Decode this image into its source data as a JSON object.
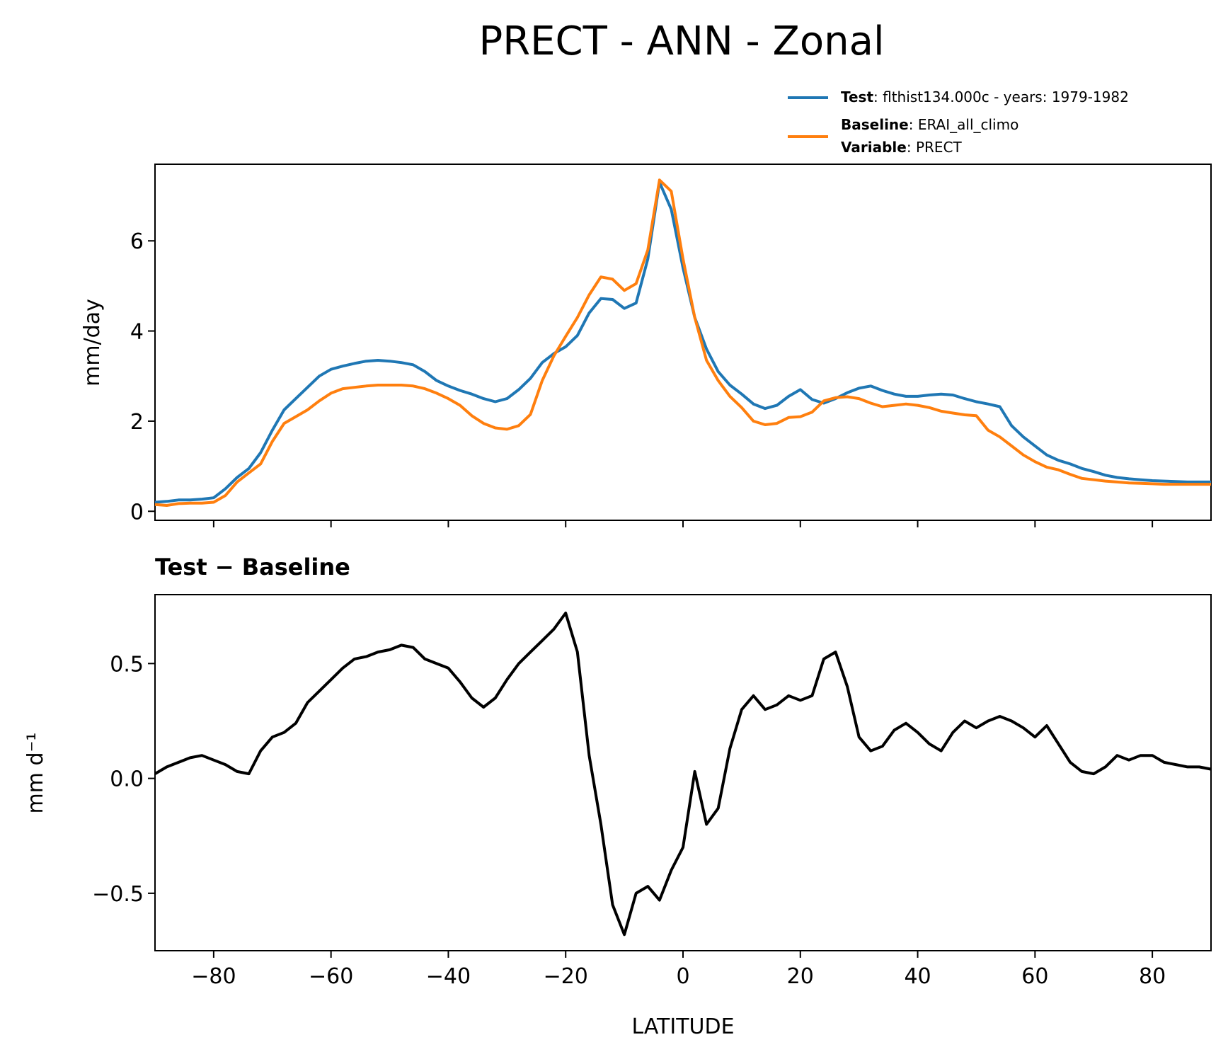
{
  "chart_data": [
    {
      "type": "line",
      "title": "PRECT - ANN - Zonal",
      "xlabel": "",
      "ylabel": "mm/day",
      "xlim": [
        -90,
        90
      ],
      "ylim": [
        -0.2,
        7.7
      ],
      "yticks": [
        0,
        2,
        4,
        6
      ],
      "ytick_labels": [
        "0",
        "2",
        "4",
        "6"
      ],
      "xticks": [
        -80,
        -60,
        -40,
        -20,
        0,
        20,
        40,
        60,
        80
      ],
      "legend": {
        "placement": "above-right",
        "test_key": "Test",
        "test_value": ": flthist134.000c - years: 1979-1982",
        "baseline_key": "Baseline",
        "baseline_value": ": ERAI_all_climo",
        "variable_key": "Variable",
        "variable_value": ": PRECT"
      },
      "series": [
        {
          "name": "Test",
          "color": "#1f77b4",
          "x": [
            -90,
            -88,
            -86,
            -84,
            -82,
            -80,
            -78,
            -76,
            -74,
            -72,
            -70,
            -68,
            -66,
            -64,
            -62,
            -60,
            -58,
            -56,
            -54,
            -52,
            -50,
            -48,
            -46,
            -44,
            -42,
            -40,
            -38,
            -36,
            -34,
            -32,
            -30,
            -28,
            -26,
            -24,
            -22,
            -20,
            -18,
            -16,
            -14,
            -12,
            -10,
            -8,
            -6,
            -4,
            -2,
            0,
            2,
            4,
            6,
            8,
            10,
            12,
            14,
            16,
            18,
            20,
            22,
            24,
            26,
            28,
            30,
            32,
            34,
            36,
            38,
            40,
            42,
            44,
            46,
            48,
            50,
            52,
            54,
            56,
            58,
            60,
            62,
            64,
            66,
            68,
            70,
            72,
            74,
            76,
            78,
            80,
            82,
            84,
            86,
            88,
            90
          ],
          "values": [
            0.2,
            0.22,
            0.25,
            0.25,
            0.27,
            0.3,
            0.5,
            0.75,
            0.95,
            1.3,
            1.8,
            2.25,
            2.5,
            2.75,
            3.0,
            3.15,
            3.22,
            3.28,
            3.33,
            3.35,
            3.33,
            3.3,
            3.25,
            3.1,
            2.9,
            2.78,
            2.68,
            2.6,
            2.5,
            2.43,
            2.5,
            2.7,
            2.95,
            3.3,
            3.5,
            3.65,
            3.9,
            4.4,
            4.72,
            4.7,
            4.5,
            4.62,
            5.6,
            7.3,
            6.7,
            5.4,
            4.3,
            3.6,
            3.1,
            2.8,
            2.6,
            2.38,
            2.28,
            2.35,
            2.55,
            2.7,
            2.48,
            2.4,
            2.5,
            2.63,
            2.73,
            2.78,
            2.68,
            2.6,
            2.55,
            2.55,
            2.58,
            2.6,
            2.58,
            2.5,
            2.43,
            2.38,
            2.32,
            1.9,
            1.65,
            1.45,
            1.25,
            1.13,
            1.05,
            0.95,
            0.88,
            0.8,
            0.75,
            0.72,
            0.7,
            0.68,
            0.67,
            0.66,
            0.65,
            0.65,
            0.65
          ]
        },
        {
          "name": "Baseline",
          "color": "#ff7f0e",
          "x": [
            -90,
            -88,
            -86,
            -84,
            -82,
            -80,
            -78,
            -76,
            -74,
            -72,
            -70,
            -68,
            -66,
            -64,
            -62,
            -60,
            -58,
            -56,
            -54,
            -52,
            -50,
            -48,
            -46,
            -44,
            -42,
            -40,
            -38,
            -36,
            -34,
            -32,
            -30,
            -28,
            -26,
            -24,
            -22,
            -20,
            -18,
            -16,
            -14,
            -12,
            -10,
            -8,
            -6,
            -4,
            -2,
            0,
            2,
            4,
            6,
            8,
            10,
            12,
            14,
            16,
            18,
            20,
            22,
            24,
            26,
            28,
            30,
            32,
            34,
            36,
            38,
            40,
            42,
            44,
            46,
            48,
            50,
            52,
            54,
            56,
            58,
            60,
            62,
            64,
            66,
            68,
            70,
            72,
            74,
            76,
            78,
            80,
            82,
            84,
            86,
            88,
            90
          ],
          "values": [
            0.15,
            0.13,
            0.17,
            0.18,
            0.18,
            0.2,
            0.35,
            0.65,
            0.85,
            1.05,
            1.55,
            1.95,
            2.1,
            2.25,
            2.45,
            2.62,
            2.72,
            2.75,
            2.78,
            2.8,
            2.8,
            2.8,
            2.78,
            2.72,
            2.62,
            2.5,
            2.35,
            2.12,
            1.95,
            1.85,
            1.82,
            1.9,
            2.15,
            2.9,
            3.45,
            3.88,
            4.3,
            4.8,
            5.2,
            5.15,
            4.9,
            5.05,
            5.8,
            7.35,
            7.1,
            5.6,
            4.3,
            3.35,
            2.9,
            2.55,
            2.3,
            2.0,
            1.92,
            1.95,
            2.08,
            2.1,
            2.2,
            2.45,
            2.52,
            2.54,
            2.5,
            2.4,
            2.32,
            2.35,
            2.38,
            2.35,
            2.3,
            2.22,
            2.18,
            2.14,
            2.12,
            1.8,
            1.65,
            1.45,
            1.25,
            1.1,
            0.98,
            0.92,
            0.82,
            0.73,
            0.7,
            0.67,
            0.65,
            0.63,
            0.62,
            0.61,
            0.6,
            0.6,
            0.6,
            0.6,
            0.6
          ]
        }
      ]
    },
    {
      "type": "line",
      "title": "Test − Baseline",
      "xlabel": "LATITUDE",
      "ylabel": "mm d⁻¹",
      "xlim": [
        -90,
        90
      ],
      "ylim": [
        -0.75,
        0.8
      ],
      "yticks": [
        -0.5,
        0.0,
        0.5
      ],
      "ytick_labels": [
        "−0.5",
        "0.0",
        "0.5"
      ],
      "xticks": [
        -80,
        -60,
        -40,
        -20,
        0,
        20,
        40,
        60,
        80
      ],
      "xtick_labels": [
        "−80",
        "−60",
        "−40",
        "−20",
        "0",
        "20",
        "40",
        "60",
        "80"
      ],
      "series": [
        {
          "name": "Test - Baseline",
          "color": "#000000",
          "x": [
            -90,
            -88,
            -86,
            -84,
            -82,
            -80,
            -78,
            -76,
            -74,
            -72,
            -70,
            -68,
            -66,
            -64,
            -62,
            -60,
            -58,
            -56,
            -54,
            -52,
            -50,
            -48,
            -46,
            -44,
            -42,
            -40,
            -38,
            -36,
            -34,
            -32,
            -30,
            -28,
            -26,
            -24,
            -22,
            -20,
            -18,
            -16,
            -14,
            -12,
            -10,
            -8,
            -6,
            -4,
            -2,
            0,
            2,
            4,
            6,
            8,
            10,
            12,
            14,
            16,
            18,
            20,
            22,
            24,
            26,
            28,
            30,
            32,
            34,
            36,
            38,
            40,
            42,
            44,
            46,
            48,
            50,
            52,
            54,
            56,
            58,
            60,
            62,
            64,
            66,
            68,
            70,
            72,
            74,
            76,
            78,
            80,
            82,
            84,
            86,
            88,
            90
          ],
          "values": [
            0.02,
            0.05,
            0.07,
            0.09,
            0.1,
            0.08,
            0.06,
            0.03,
            0.02,
            0.12,
            0.18,
            0.2,
            0.24,
            0.33,
            0.38,
            0.43,
            0.48,
            0.52,
            0.53,
            0.55,
            0.56,
            0.58,
            0.57,
            0.52,
            0.5,
            0.48,
            0.42,
            0.35,
            0.31,
            0.35,
            0.43,
            0.5,
            0.55,
            0.6,
            0.65,
            0.72,
            0.55,
            0.1,
            -0.2,
            -0.55,
            -0.68,
            -0.5,
            -0.47,
            -0.53,
            -0.4,
            -0.3,
            0.03,
            -0.2,
            -0.13,
            0.13,
            0.3,
            0.36,
            0.3,
            0.32,
            0.36,
            0.34,
            0.36,
            0.52,
            0.55,
            0.4,
            0.18,
            0.12,
            0.14,
            0.21,
            0.24,
            0.2,
            0.15,
            0.12,
            0.2,
            0.25,
            0.22,
            0.25,
            0.27,
            0.25,
            0.22,
            0.18,
            0.23,
            0.15,
            0.07,
            0.03,
            0.02,
            0.05,
            0.1,
            0.08,
            0.1,
            0.1,
            0.07,
            0.06,
            0.05,
            0.05,
            0.04
          ]
        }
      ]
    }
  ]
}
